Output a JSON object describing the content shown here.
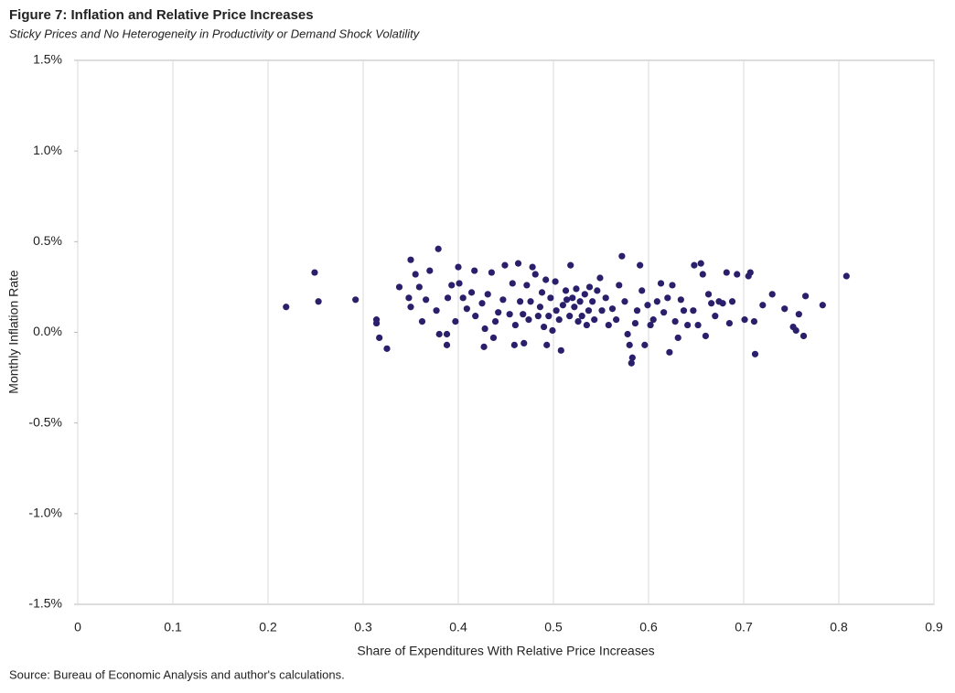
{
  "chart_data": {
    "type": "scatter",
    "title": "Figure 7: Inflation and Relative Price Increases",
    "subtitle": "Sticky Prices and No Heterogeneity in Productivity or Demand Shock Volatility",
    "x_label": "Share of Expenditures With Relative Price Increases",
    "y_label": "Monthly Inflation Rate",
    "source": "Source: Bureau of Economic Analysis and author's calculations.",
    "color": "#2a1f6b",
    "grid": "x",
    "xlim": [
      0,
      0.9
    ],
    "xticks": [
      0,
      0.1,
      0.2,
      0.3,
      0.4,
      0.5,
      0.6,
      0.7,
      0.8,
      0.9
    ],
    "ylim": [
      -1.5,
      1.5
    ],
    "yticks": [
      {
        "value": 1.5,
        "label": "1.5%"
      },
      {
        "value": 1.0,
        "label": "1.0%"
      },
      {
        "value": 0.5,
        "label": "0.5%"
      },
      {
        "value": 0,
        "label": "0.0%"
      },
      {
        "value": -0.5,
        "label": "-0.5%"
      },
      {
        "value": -1.0,
        "label": "-1.0%"
      },
      {
        "value": -1.5,
        "label": "-1.5%"
      }
    ],
    "x": [
      0.219,
      0.249,
      0.253,
      0.292,
      0.314,
      0.314,
      0.317,
      0.325,
      0.338,
      0.35,
      0.355,
      0.359,
      0.348,
      0.35,
      0.362,
      0.366,
      0.37,
      0.379,
      0.377,
      0.38,
      0.388,
      0.388,
      0.389,
      0.393,
      0.4,
      0.401,
      0.397,
      0.405,
      0.409,
      0.414,
      0.417,
      0.418,
      0.425,
      0.428,
      0.431,
      0.427,
      0.435,
      0.437,
      0.439,
      0.442,
      0.447,
      0.449,
      0.454,
      0.457,
      0.459,
      0.46,
      0.463,
      0.465,
      0.468,
      0.469,
      0.472,
      0.474,
      0.476,
      0.478,
      0.481,
      0.484,
      0.486,
      0.488,
      0.49,
      0.492,
      0.493,
      0.495,
      0.497,
      0.499,
      0.502,
      0.503,
      0.506,
      0.508,
      0.51,
      0.513,
      0.514,
      0.517,
      0.518,
      0.52,
      0.522,
      0.524,
      0.526,
      0.528,
      0.53,
      0.533,
      0.535,
      0.537,
      0.538,
      0.541,
      0.543,
      0.546,
      0.549,
      0.551,
      0.555,
      0.558,
      0.562,
      0.566,
      0.569,
      0.572,
      0.575,
      0.578,
      0.58,
      0.582,
      0.583,
      0.586,
      0.588,
      0.591,
      0.593,
      0.596,
      0.599,
      0.602,
      0.605,
      0.609,
      0.613,
      0.616,
      0.62,
      0.622,
      0.625,
      0.628,
      0.631,
      0.634,
      0.637,
      0.641,
      0.647,
      0.648,
      0.652,
      0.655,
      0.657,
      0.66,
      0.663,
      0.666,
      0.67,
      0.674,
      0.678,
      0.682,
      0.685,
      0.688,
      0.693,
      0.701,
      0.705,
      0.707,
      0.711,
      0.712,
      0.72,
      0.73,
      0.743,
      0.752,
      0.755,
      0.758,
      0.763,
      0.765,
      0.783,
      0.808
    ],
    "values": [
      0.14,
      0.33,
      0.17,
      0.18,
      0.07,
      0.05,
      -0.03,
      -0.09,
      0.25,
      0.4,
      0.32,
      0.25,
      0.19,
      0.14,
      0.06,
      0.18,
      0.34,
      0.46,
      0.12,
      -0.01,
      -0.01,
      -0.07,
      0.19,
      0.26,
      0.36,
      0.27,
      0.06,
      0.19,
      0.13,
      0.22,
      0.34,
      0.09,
      0.16,
      0.02,
      0.21,
      -0.08,
      0.33,
      -0.03,
      0.06,
      0.11,
      0.18,
      0.37,
      0.1,
      0.27,
      -0.07,
      0.04,
      0.38,
      0.17,
      0.1,
      -0.06,
      0.26,
      0.07,
      0.17,
      0.36,
      0.32,
      0.09,
      0.14,
      0.22,
      0.03,
      0.29,
      -0.07,
      0.09,
      0.19,
      0.01,
      0.28,
      0.12,
      0.07,
      -0.1,
      0.15,
      0.23,
      0.18,
      0.09,
      0.37,
      0.19,
      0.14,
      0.24,
      0.06,
      0.17,
      0.09,
      0.21,
      0.04,
      0.12,
      0.25,
      0.17,
      0.07,
      0.23,
      0.3,
      0.12,
      0.19,
      0.04,
      0.13,
      0.07,
      0.26,
      0.42,
      0.17,
      -0.01,
      -0.07,
      -0.17,
      -0.14,
      0.05,
      0.12,
      0.37,
      0.23,
      -0.07,
      0.15,
      0.04,
      0.07,
      0.17,
      0.27,
      0.11,
      0.19,
      -0.11,
      0.26,
      0.06,
      -0.03,
      0.18,
      0.12,
      0.04,
      0.12,
      0.37,
      0.04,
      0.38,
      0.32,
      -0.02,
      0.21,
      0.16,
      0.09,
      0.17,
      0.16,
      0.33,
      0.05,
      0.17,
      0.32,
      0.07,
      0.31,
      0.33,
      0.06,
      -0.12,
      0.15,
      0.21,
      0.13,
      0.03,
      0.01,
      0.1,
      -0.02,
      0.2,
      0.15,
      0.31
    ]
  }
}
